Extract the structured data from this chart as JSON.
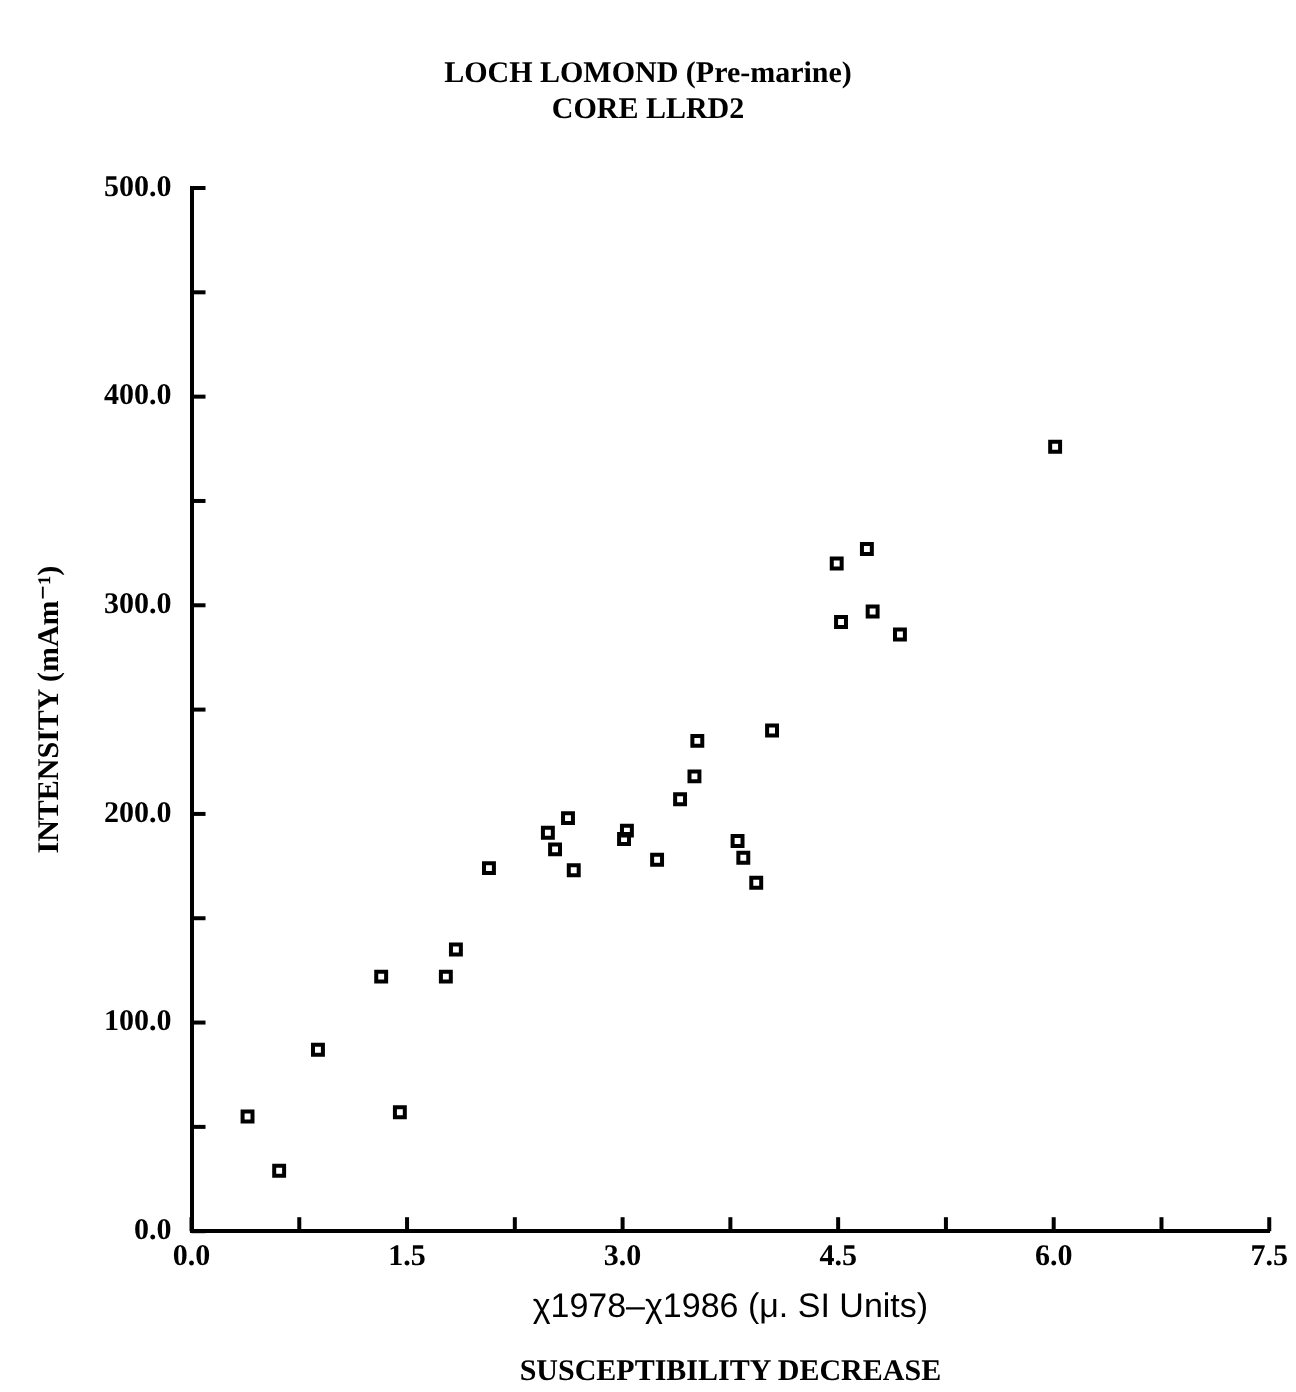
{
  "chart_data": {
    "type": "scatter",
    "title": "LOCH LOMOND (Pre-marine)",
    "subtitle": "CORE LLRD2",
    "xlabel": "χ1978–χ1986 (μ. SI Units)",
    "ylabel": "INTENSITY (mAm⁻¹)",
    "annotations": [
      "SUSCEPTIBILITY DECREASE"
    ],
    "x": [
      0.39,
      0.61,
      0.88,
      1.32,
      1.45,
      1.77,
      1.84,
      2.07,
      2.48,
      2.53,
      2.62,
      2.66,
      3.01,
      3.03,
      3.24,
      3.4,
      3.5,
      3.52,
      3.8,
      3.84,
      3.93,
      4.04,
      4.49,
      4.7,
      4.52,
      4.74,
      4.93,
      6.01
    ],
    "series": [
      {
        "color": "#000000",
        "values": [
          55,
          29,
          87,
          122,
          57,
          122,
          135,
          174,
          191,
          183,
          198,
          173,
          188,
          192,
          178,
          207,
          218,
          235,
          187,
          179,
          167,
          240,
          320,
          327,
          292,
          297,
          286,
          376
        ]
      }
    ],
    "marker": "square",
    "grid": false,
    "legend": false,
    "xlim": [
      0,
      7.5
    ],
    "xticks": [
      {
        "value": 0,
        "label": "0.0"
      },
      {
        "value": 0.75,
        "label": null
      },
      1.5,
      {
        "value": 2.25,
        "label": null
      },
      {
        "value": 3,
        "label": "3.0"
      },
      {
        "value": 3.75,
        "label": null
      },
      4.5,
      {
        "value": 5.25,
        "label": null
      },
      {
        "value": 6,
        "label": "6.0"
      },
      {
        "value": 6.75,
        "label": null
      },
      7.5
    ],
    "ylim": [
      0,
      500
    ],
    "yticks": [
      {
        "value": 0,
        "label": "0.0"
      },
      {
        "value": 50,
        "label": null
      },
      {
        "value": 100,
        "label": "100.0"
      },
      {
        "value": 150,
        "label": null
      },
      {
        "value": 200,
        "label": "200.0"
      },
      {
        "value": 250,
        "label": null
      },
      {
        "value": 300,
        "label": "300.0"
      },
      {
        "value": 350,
        "label": null
      },
      {
        "value": 400,
        "label": "400.0"
      },
      {
        "value": 450,
        "label": null
      },
      {
        "value": 500,
        "label": "500.0"
      }
    ]
  }
}
